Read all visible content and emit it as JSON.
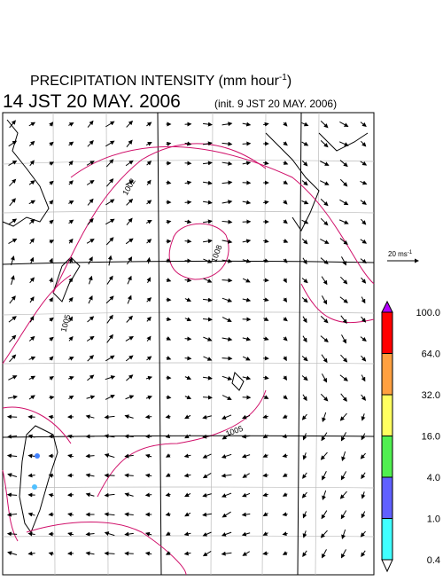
{
  "header": {
    "title": "PRECIPITATION INTENSITY (mm hour",
    "title_exponent": "-1",
    "title_close": ")",
    "valid_time": "14 JST 20 MAY. 2006",
    "init_time": "(init. 9 JST 20 MAY. 2006)"
  },
  "contour_labels": [
    "1002",
    "1008",
    "1005",
    "1005"
  ],
  "vector_reference": {
    "label": "20 ms",
    "exponent": "-1"
  },
  "colorbar": {
    "labels": [
      "100.0",
      "64.0",
      "32.0",
      "16.0",
      "4.0",
      "1.0",
      "0.4"
    ],
    "colors": [
      "#b400ff",
      "#ff0000",
      "#ffa040",
      "#ffff60",
      "#50f050",
      "#6060ff",
      "#40ffff",
      "#ffffff"
    ]
  }
}
